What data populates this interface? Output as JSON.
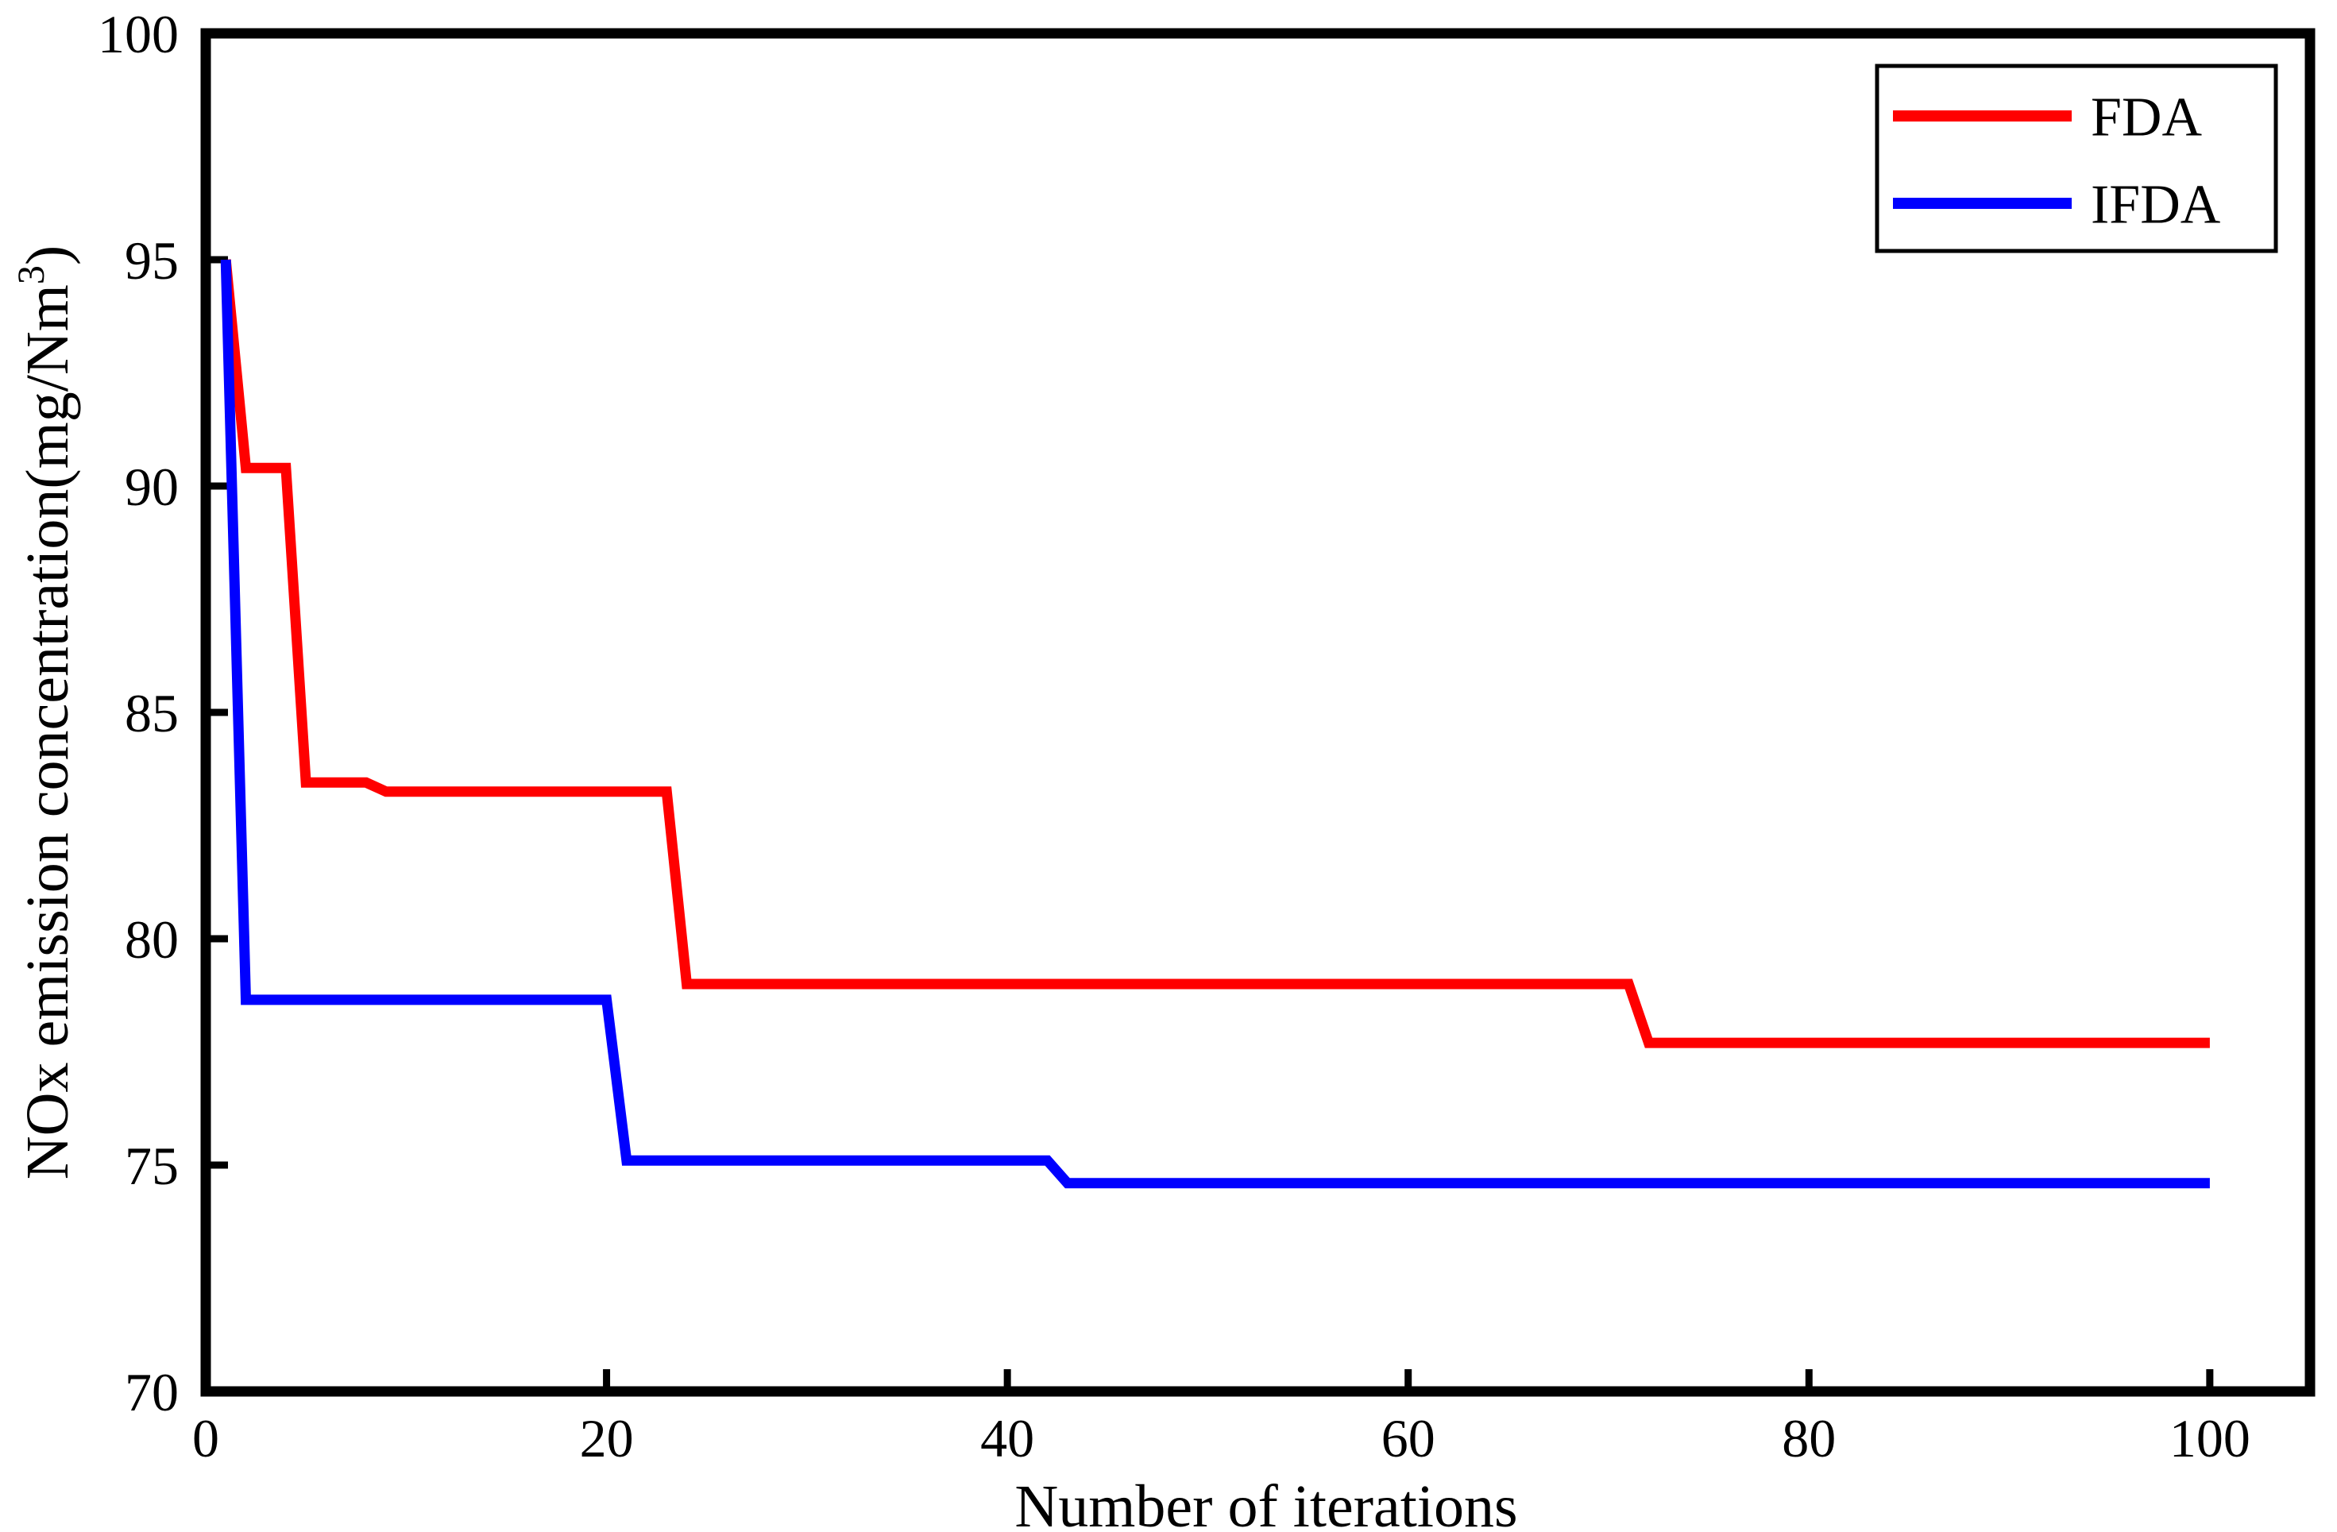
{
  "chart_data": {
    "type": "line",
    "title": "",
    "xlabel": "Number of iterations",
    "ylabel": "NOx emission concentration(mg/Nm3)",
    "ylabel_parts": {
      "main": "NOx emission concentration(mg/Nm",
      "sup": "3",
      "close": ")"
    },
    "xlim": [
      0,
      105
    ],
    "ylim": [
      70,
      100
    ],
    "xticks": [
      0,
      20,
      40,
      60,
      80,
      100
    ],
    "yticks": [
      70,
      75,
      80,
      85,
      90,
      95,
      100
    ],
    "grid": false,
    "tick_direction": "in",
    "legend": {
      "position": "top-right",
      "border_color": "#000000",
      "entries": [
        {
          "label": "FDA",
          "color": "#ff0000"
        },
        {
          "label": "IFDA",
          "color": "#0000ff"
        }
      ]
    },
    "series": [
      {
        "name": "FDA",
        "color": "#ff0000",
        "points": [
          [
            1,
            95
          ],
          [
            2,
            90.4
          ],
          [
            4,
            90.4
          ],
          [
            5,
            83.45
          ],
          [
            8,
            83.45
          ],
          [
            9,
            83.25
          ],
          [
            23,
            83.25
          ],
          [
            24,
            79.0
          ],
          [
            71,
            79.0
          ],
          [
            72,
            77.7
          ],
          [
            100,
            77.7
          ]
        ]
      },
      {
        "name": "IFDA",
        "color": "#0000ff",
        "points": [
          [
            1,
            95
          ],
          [
            2,
            78.65
          ],
          [
            20,
            78.65
          ],
          [
            21,
            75.1
          ],
          [
            42,
            75.1
          ],
          [
            43,
            74.6
          ],
          [
            100,
            74.6
          ]
        ]
      }
    ]
  },
  "colors": {
    "background": "#ffffff",
    "axis": "#000000",
    "fda": "#ff0000",
    "ifda": "#0000ff"
  }
}
